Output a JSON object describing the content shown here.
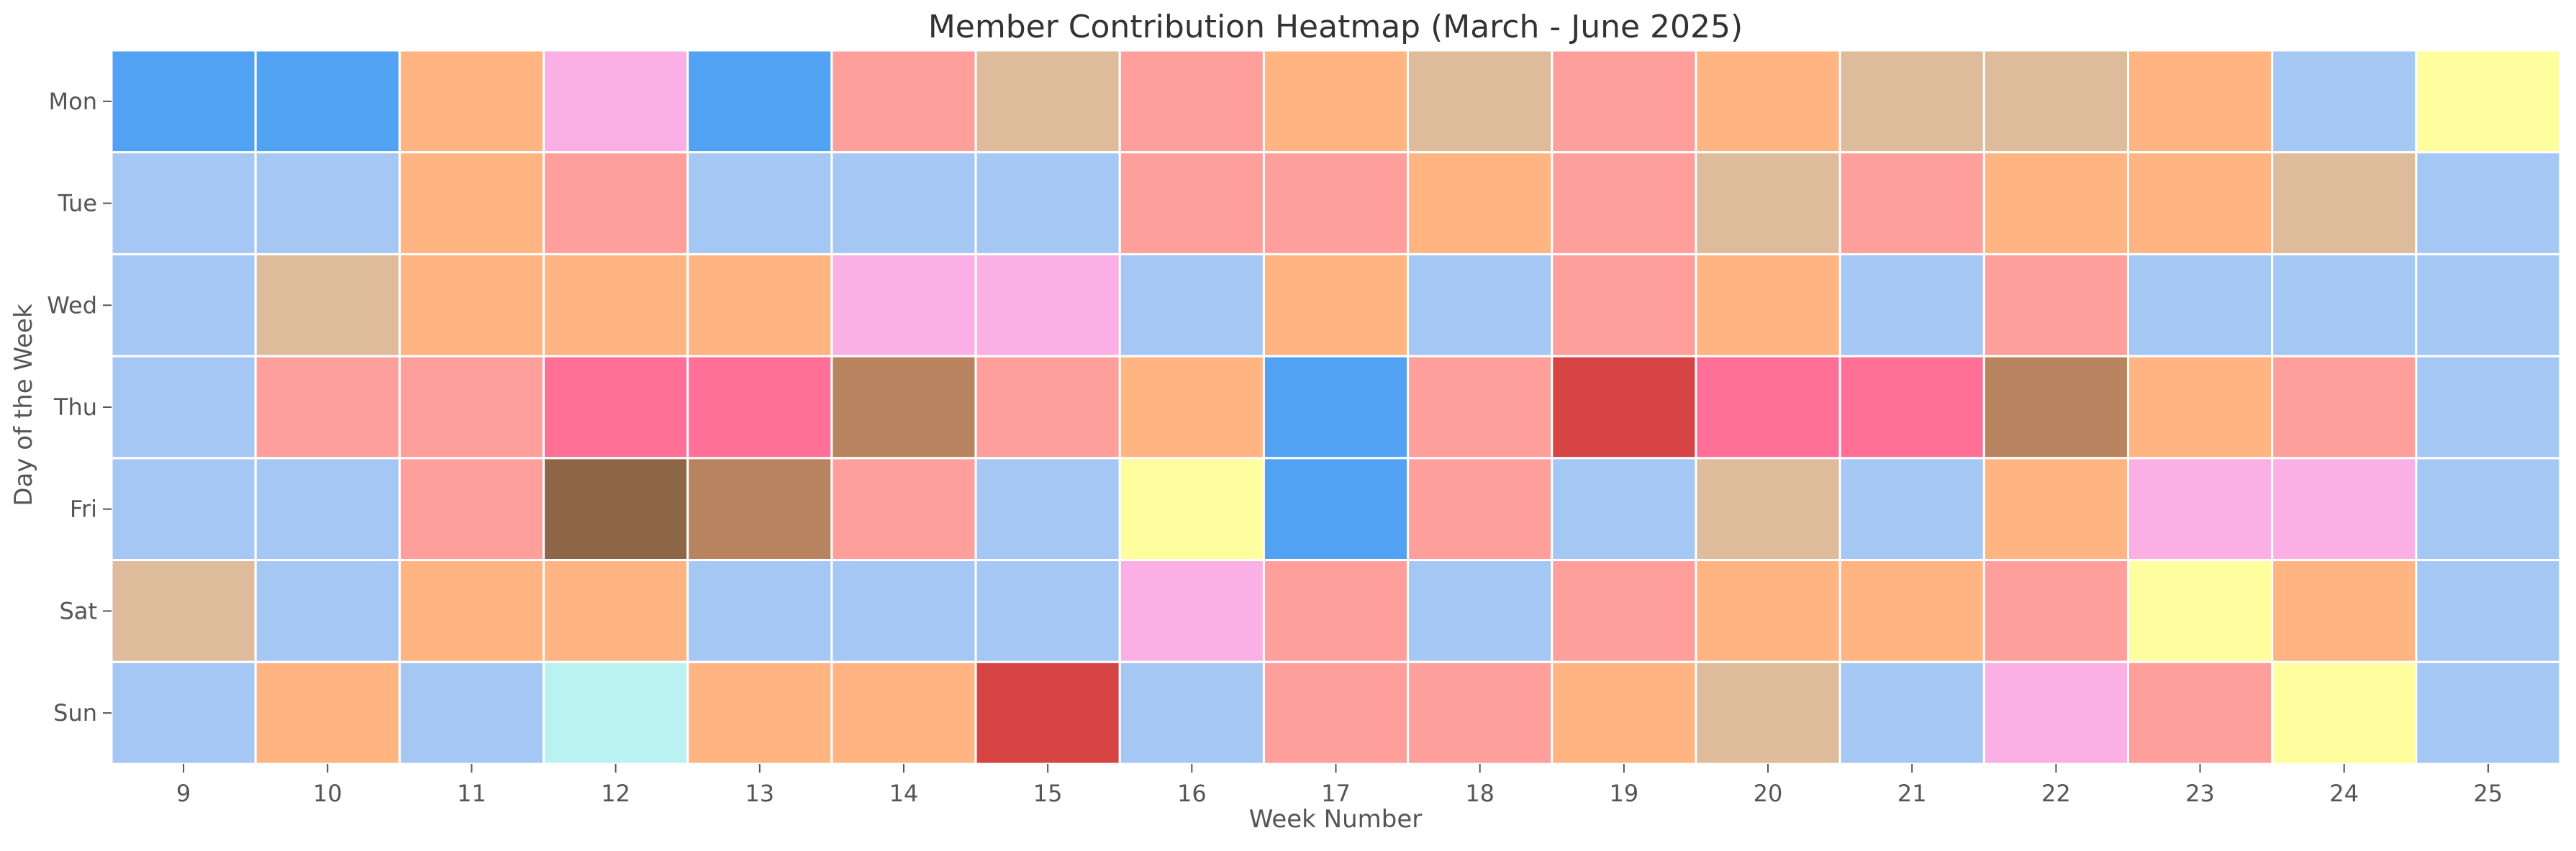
{
  "chart_data": {
    "type": "heatmap",
    "title": "Member Contribution Heatmap (March - June 2025)",
    "xlabel": "Week Number",
    "ylabel": "Day of the Week",
    "x": [
      9,
      10,
      11,
      12,
      13,
      14,
      15,
      16,
      17,
      18,
      19,
      20,
      21,
      22,
      23,
      24,
      25
    ],
    "y": [
      "Mon",
      "Tue",
      "Wed",
      "Thu",
      "Fri",
      "Sat",
      "Sun"
    ],
    "colormap_legend_shown": false,
    "grid": false,
    "palette": {
      "0": "#a4c8f3",
      "1": "#ffb482",
      "2": "#ff9f9b",
      "3": "#debb9b",
      "4": "#fab0e4",
      "5": "#52a2f3",
      "6": "#fefe9f",
      "7": "#b9f2f0",
      "8": "#ff6f96",
      "9": "#b8845f",
      "10": "#d64444",
      "11": "#8c6647"
    },
    "values": [
      [
        5,
        5,
        1,
        4,
        5,
        2,
        3,
        2,
        1,
        3,
        2,
        1,
        3,
        3,
        1,
        0,
        6
      ],
      [
        0,
        0,
        1,
        2,
        0,
        0,
        0,
        2,
        2,
        1,
        2,
        3,
        2,
        1,
        1,
        3,
        0
      ],
      [
        0,
        3,
        1,
        1,
        1,
        4,
        4,
        0,
        1,
        0,
        2,
        1,
        0,
        2,
        0,
        0,
        0
      ],
      [
        0,
        2,
        2,
        8,
        8,
        9,
        2,
        1,
        5,
        2,
        10,
        8,
        8,
        9,
        1,
        2,
        0
      ],
      [
        0,
        0,
        2,
        11,
        9,
        2,
        0,
        6,
        5,
        2,
        0,
        3,
        0,
        1,
        4,
        4,
        0
      ],
      [
        3,
        0,
        1,
        1,
        0,
        0,
        0,
        4,
        2,
        0,
        2,
        1,
        1,
        2,
        6,
        1,
        0
      ],
      [
        0,
        1,
        0,
        7,
        1,
        1,
        10,
        0,
        2,
        2,
        1,
        3,
        0,
        4,
        2,
        6,
        0
      ]
    ]
  }
}
